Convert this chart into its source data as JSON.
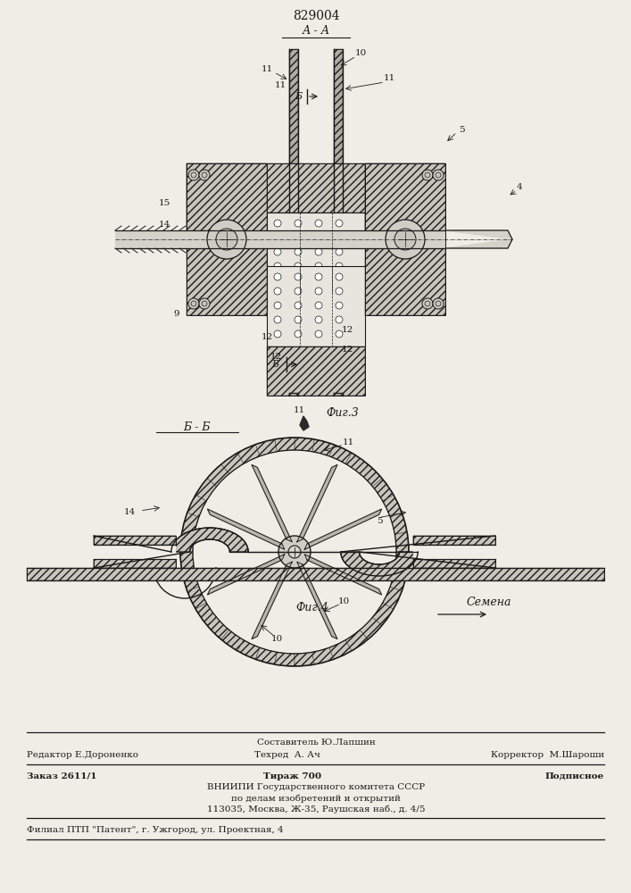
{
  "patent_number": "829004",
  "fig3_label": "А - А",
  "fig3_caption": "Фиг.3",
  "fig4_label": "Б - Б",
  "fig4_caption": "Фиг.4",
  "bg_color": "#f0ede6",
  "line_color": "#1a1a1a",
  "footer_line1_left": "Редактор Е.Дороненко",
  "footer_line1_center": "Техред  А. Ач",
  "footer_line1_right": "Корректор  М.Шароши",
  "footer_composer": "Составитель Ю.Лапшин",
  "footer_order": "Заказ 2611/1",
  "footer_edition": "Тираж 700",
  "footer_type": "Подписное",
  "footer_org1": "ВНИИПИ Государственного комитета СССР",
  "footer_org2": "по делам изобретений и открытий",
  "footer_org3": "113035, Москва, Ж-35, Раушская наб., д. 4/5",
  "footer_branch": "Филиал ПТП \"Патент\", г. Ужгород, ул. Проектная, 4",
  "semena_label": "Семена"
}
